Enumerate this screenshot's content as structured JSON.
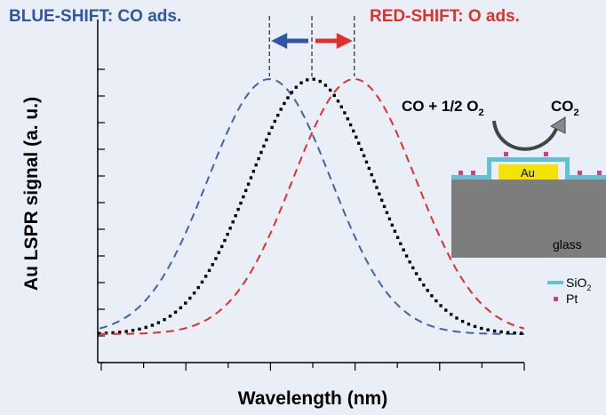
{
  "header": {
    "blue_shift": "BLUE-SHIFT: CO ads.",
    "red_shift": "RED-SHIFT: O ads."
  },
  "inset": {
    "equation_lhs": "CO + 1/2 O",
    "equation_lhs_sub": "2",
    "equation_rhs": "CO",
    "equation_rhs_sub": "2",
    "au_label": "Au",
    "glass_label": "glass",
    "legend": [
      {
        "label": "SiO",
        "sub": "2",
        "color": "#5fc0d6"
      },
      {
        "label": "Pt",
        "sub": "",
        "color": "#d33b8f"
      }
    ]
  },
  "chart_data": {
    "type": "line",
    "title": "",
    "xlabel": "Wavelength (nm)",
    "ylabel": "Au LSPR signal (a. u.)",
    "xlim": [
      0,
      10
    ],
    "ylim": [
      0,
      1
    ],
    "grid": false,
    "series": [
      {
        "style": "dashed",
        "color": "#4063b0",
        "peak_x": 4.0,
        "peak_y": 1.0,
        "baseline_y": 0.0
      },
      {
        "style": "dotted",
        "color": "#000000",
        "peak_x": 5.0,
        "peak_y": 1.0,
        "baseline_y": 0.0
      },
      {
        "style": "dashed",
        "color": "#e0302a",
        "peak_x": 6.0,
        "peak_y": 1.0,
        "baseline_y": 0.0
      }
    ],
    "annotations": [
      {
        "type": "arrow",
        "direction": "left",
        "color": "#2f56a6"
      },
      {
        "type": "arrow",
        "direction": "right",
        "color": "#e0302a"
      }
    ]
  }
}
